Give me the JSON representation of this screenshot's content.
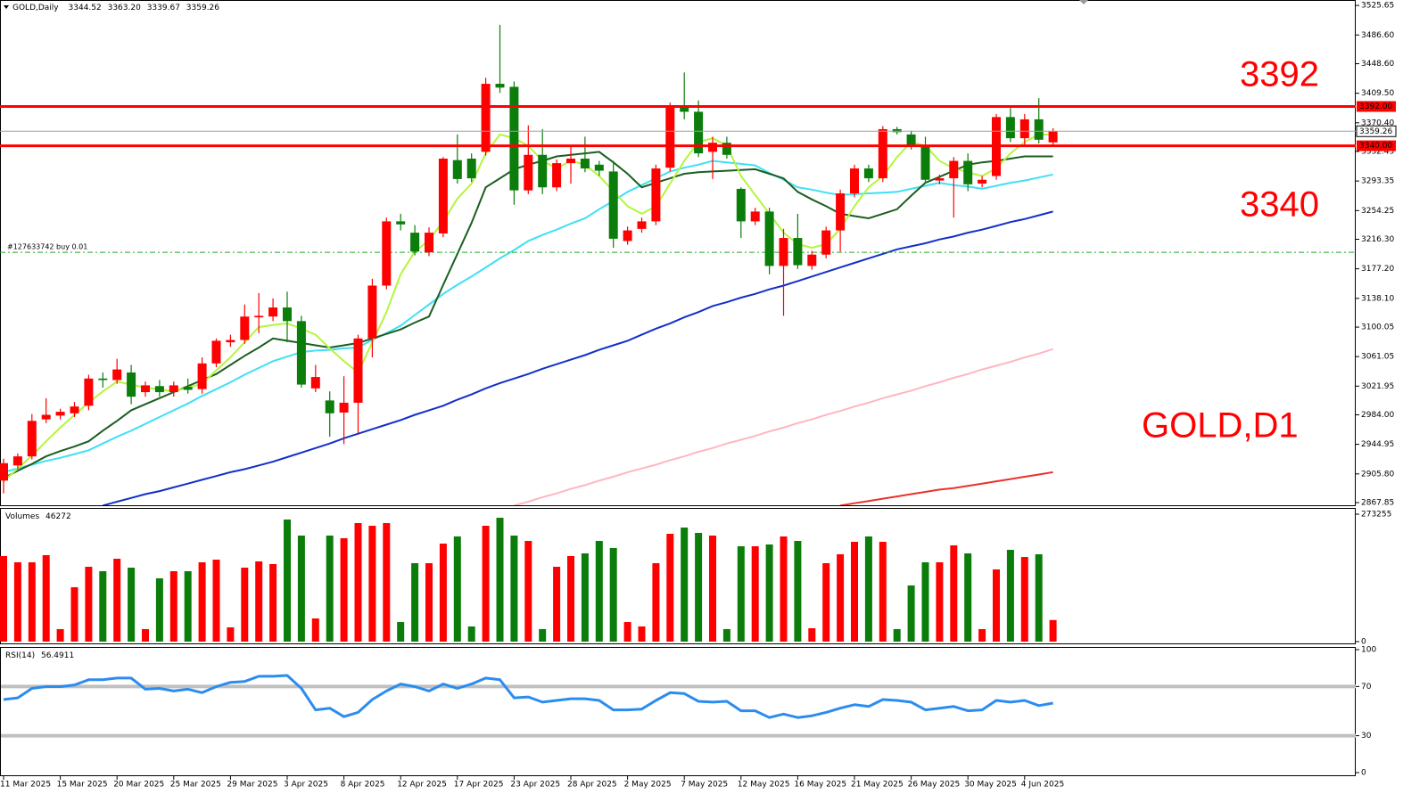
{
  "chart_data": [
    {
      "type": "candlestick",
      "header": {
        "title": "GOLD,Daily",
        "values": [
          3344.52,
          {
            "value": 3363.2,
            "label": "3363.20"
          },
          3339.67,
          3359.26
        ]
      },
      "categories": [
        "11 Mar 2025",
        null,
        null,
        null,
        "15 Mar 2025",
        null,
        null,
        null,
        "20 Mar 2025",
        null,
        null,
        null,
        "25 Mar 2025",
        null,
        null,
        null,
        "29 Mar 2025",
        null,
        null,
        null,
        "3 Apr 2025",
        null,
        null,
        null,
        "8 Apr 2025",
        null,
        null,
        null,
        "12 Apr 2025",
        null,
        null,
        null,
        "17 Apr 2025",
        null,
        null,
        null,
        "23 Apr 2025",
        null,
        null,
        null,
        "28 Apr 2025",
        null,
        null,
        null,
        "2 May 2025",
        null,
        null,
        null,
        "7 May 2025",
        null,
        null,
        null,
        "12 May 2025",
        null,
        null,
        null,
        "16 May 2025",
        null,
        null,
        null,
        "21 May 2025",
        null,
        null,
        null,
        "26 May 2025",
        null,
        null,
        null,
        "30 May 2025",
        null,
        null,
        null,
        "4 Jun 2025",
        null,
        null
      ],
      "open": [
        2897,
        2917,
        2929,
        2978,
        2983,
        2986,
        2996,
        3032,
        3030,
        3040,
        3014,
        3022,
        3014,
        3021,
        3018,
        3052,
        3080,
        3083,
        3113,
        3114,
        3126,
        3108,
        3019,
        3003,
        2987,
        3000,
        3085,
        3155,
        3240,
        3225,
        3199,
        3224,
        3321,
        3323,
        3332,
        3422,
        3418,
        3281,
        3328,
        3285,
        3317,
        3323,
        3315,
        3306,
        3214,
        3230,
        3240,
        3311,
        3393,
        3385,
        3332,
        3344,
        3283,
        3240,
        3253,
        3181,
        3218,
        3181,
        3196,
        3228,
        3277,
        3310,
        3297,
        3362,
        3355,
        3340,
        3294,
        3297,
        3320,
        3290,
        3300,
        3378,
        3350,
        3375,
        3344.52
      ],
      "high": [
        2926,
        2933,
        2985,
        3006,
        2992,
        3001,
        3037,
        3040,
        3058,
        3050,
        3028,
        3030,
        3028,
        3032,
        3060,
        3085,
        3090,
        3130,
        3145,
        3138,
        3147,
        3115,
        3050,
        3015,
        3035,
        3090,
        3164,
        3245,
        3250,
        3235,
        3232,
        3325,
        3355,
        3330,
        3430,
        3500,
        3425,
        3367,
        3362,
        3322,
        3340,
        3352,
        3320,
        3320,
        3233,
        3245,
        3315,
        3397,
        3437,
        3400,
        3352,
        3352,
        3285,
        3258,
        3258,
        3230,
        3250,
        3201,
        3233,
        3282,
        3315,
        3315,
        3366,
        3365,
        3360,
        3352,
        3302,
        3325,
        3330,
        3300,
        3382,
        3390,
        3382,
        3403,
        3363.2
      ],
      "low": [
        2880,
        2912,
        2925,
        2973,
        2978,
        2981,
        2990,
        3020,
        3025,
        2998,
        3008,
        3008,
        3008,
        3012,
        3012,
        3047,
        3074,
        3078,
        3092,
        3108,
        3080,
        3020,
        3014,
        2955,
        2945,
        2960,
        3060,
        3150,
        3228,
        3195,
        3194,
        3219,
        3290,
        3292,
        3327,
        3410,
        3262,
        3276,
        3276,
        3280,
        3290,
        3305,
        3300,
        3205,
        3209,
        3225,
        3235,
        3306,
        3375,
        3325,
        3296,
        3323,
        3218,
        3235,
        3170,
        3115,
        3177,
        3176,
        3191,
        3200,
        3272,
        3292,
        3292,
        3355,
        3335,
        3290,
        3289,
        3245,
        3280,
        3285,
        3295,
        3345,
        3340,
        3343,
        3339.67
      ],
      "close": [
        2920,
        2929,
        2976,
        2984,
        2988,
        2995,
        3032,
        3030,
        3044,
        3008,
        3023,
        3014,
        3023,
        3017,
        3052,
        3082,
        3083,
        3114,
        3115,
        3126,
        3108,
        3024,
        3034,
        2986,
        3000,
        3085,
        3155,
        3240,
        3236,
        3200,
        3225,
        3323,
        3296,
        3297,
        3422,
        3417,
        3281,
        3328,
        3285,
        3317,
        3323,
        3310,
        3307,
        3217,
        3228,
        3240,
        3310,
        3393,
        3385,
        3330,
        3344,
        3328,
        3240,
        3253,
        3181,
        3218,
        3182,
        3196,
        3228,
        3277,
        3310,
        3297,
        3362,
        3358,
        3340,
        3295,
        3297,
        3320,
        3289,
        3295,
        3378,
        3350,
        3375,
        3348,
        3359.26
      ],
      "up_color": "#ff0000",
      "down_color": "#0a7d0a",
      "series": [
        {
          "color": "#e8332a",
          "values": [
            null,
            null,
            null,
            null,
            null,
            null,
            null,
            null,
            null,
            null,
            null,
            null,
            null,
            null,
            null,
            null,
            null,
            null,
            null,
            null,
            null,
            null,
            null,
            null,
            null,
            null,
            null,
            null,
            null,
            null,
            null,
            null,
            null,
            null,
            null,
            null,
            null,
            null,
            null,
            null,
            null,
            null,
            null,
            null,
            null,
            null,
            null,
            null,
            null,
            null,
            null,
            null,
            null,
            null,
            null,
            null,
            null,
            null,
            null,
            2864,
            2867,
            2870,
            2873,
            2876,
            2879,
            2882,
            2885,
            2887,
            2890,
            2893,
            2896,
            2899,
            2902,
            2905,
            2908
          ]
        },
        {
          "color": "#ffb6c1",
          "values": [
            null,
            null,
            null,
            null,
            null,
            null,
            null,
            null,
            null,
            null,
            null,
            null,
            null,
            null,
            null,
            null,
            null,
            null,
            null,
            null,
            null,
            null,
            null,
            null,
            null,
            null,
            null,
            null,
            null,
            null,
            null,
            null,
            null,
            null,
            null,
            null,
            2864,
            2869,
            2875,
            2880,
            2886,
            2891,
            2897,
            2902,
            2908,
            2913,
            2918,
            2924,
            2929,
            2935,
            2940,
            2946,
            2951,
            2956,
            2962,
            2967,
            2973,
            2978,
            2984,
            2989,
            2995,
            3000,
            3006,
            3011,
            3016,
            3022,
            3027,
            3033,
            3038,
            3044,
            3049,
            3054,
            3060,
            3065,
            3071
          ]
        },
        {
          "color": "#1230c8",
          "values": [
            null,
            null,
            null,
            null,
            null,
            null,
            null,
            2864,
            2869,
            2874,
            2879,
            2883,
            2888,
            2893,
            2898,
            2903,
            2908,
            2912,
            2917,
            2922,
            2928,
            2934,
            2940,
            2946,
            2953,
            2959,
            2965,
            2971,
            2977,
            2984,
            2990,
            2996,
            3004,
            3011,
            3019,
            3026,
            3032,
            3038,
            3045,
            3051,
            3057,
            3063,
            3070,
            3076,
            3082,
            3090,
            3098,
            3105,
            3113,
            3120,
            3128,
            3133,
            3139,
            3144,
            3150,
            3155,
            3161,
            3167,
            3173,
            3179,
            3185,
            3191,
            3197,
            3203,
            3207,
            3211,
            3216,
            3220,
            3225,
            3229,
            3234,
            3239,
            3243,
            3248,
            3253
          ]
        },
        {
          "color": "#3ee0f5",
          "values": [
            2908,
            2913,
            2918,
            2923,
            2927,
            2932,
            2937,
            2946,
            2955,
            2963,
            2972,
            2981,
            2990,
            2999,
            3009,
            3018,
            3027,
            3037,
            3046,
            3055,
            3061,
            3067,
            3069,
            3070,
            3072,
            3073,
            3083,
            3092,
            3102,
            3116,
            3130,
            3144,
            3156,
            3167,
            3179,
            3191,
            3202,
            3214,
            3222,
            3229,
            3237,
            3244,
            3256,
            3267,
            3279,
            3288,
            3297,
            3306,
            3311,
            3315,
            3320,
            3318,
            3316,
            3314,
            3304,
            3295,
            3285,
            3282,
            3278,
            3275,
            3276,
            3277,
            3278,
            3279,
            3283,
            3287,
            3291,
            3288,
            3286,
            3283,
            3287,
            3291,
            3294,
            3298,
            3302
          ]
        },
        {
          "color": "#1b5e20",
          "values": [
            2900,
            2910,
            2919,
            2929,
            2936,
            2942,
            2949,
            2963,
            2976,
            2990,
            2998,
            3006,
            3014,
            3022,
            3030,
            3038,
            3050,
            3062,
            3073,
            3085,
            3082,
            3079,
            3076,
            3073,
            3076,
            3079,
            3085,
            3091,
            3097,
            3106,
            3114,
            3156,
            3197,
            3238,
            3285,
            3297,
            3309,
            3315,
            3320,
            3326,
            3328,
            3330,
            3332,
            3318,
            3303,
            3285,
            3291,
            3297,
            3303,
            3305,
            3306,
            3307,
            3308,
            3309,
            3303,
            3297,
            3279,
            3269,
            3260,
            3250,
            3247,
            3244,
            3250,
            3256,
            3274,
            3291,
            3299,
            3307,
            3315,
            3318,
            3320,
            3323,
            3326,
            3326,
            3326
          ]
        },
        {
          "color": "#b5f53c",
          "values": [
            2896,
            2913,
            2930,
            2949,
            2967,
            2984,
            3000,
            3015,
            3028,
            3024,
            3020,
            3018,
            3015,
            3020,
            3025,
            3043,
            3060,
            3080,
            3100,
            3103,
            3105,
            3098,
            3090,
            3072,
            3055,
            3040,
            3080,
            3120,
            3170,
            3200,
            3215,
            3240,
            3270,
            3290,
            3330,
            3355,
            3350,
            3340,
            3320,
            3310,
            3320,
            3315,
            3300,
            3280,
            3260,
            3250,
            3260,
            3290,
            3320,
            3345,
            3350,
            3340,
            3300,
            3275,
            3250,
            3225,
            3210,
            3205,
            3210,
            3230,
            3260,
            3285,
            3300,
            3325,
            3345,
            3340,
            3320,
            3310,
            3305,
            3300,
            3310,
            3330,
            3345,
            3355,
            3355
          ]
        }
      ],
      "levels": [
        {
          "value": 3392,
          "label": "3392.00"
        },
        {
          "value": 3340,
          "label": "3340.00"
        }
      ],
      "level_color": "#ff0000",
      "orders": [
        {
          "label": "#127633742 buy 0.01",
          "value": 3199
        }
      ],
      "annotation": "GOLD,D1",
      "ylim": [
        2864.3,
        3532.9
      ],
      "yticks": [
        3525.65,
        {
          "value": 3486.6,
          "label": "3486.60"
        },
        {
          "value": 3448.6,
          "label": "3448.60"
        },
        {
          "value": 3409.5,
          "label": "3409.50"
        },
        {
          "value": 3370.4,
          "label": "3370.40"
        },
        3332.45,
        3293.35,
        3254.25,
        {
          "value": 3216.3,
          "label": "3216.30"
        },
        {
          "value": 3177.2,
          "label": "3177.20"
        },
        {
          "value": 3138.1,
          "label": "3138.10"
        },
        3100.05,
        3061.05,
        3021.95,
        {
          "value": 2984,
          "label": "2984.00"
        },
        2944.95,
        {
          "value": 2905.8,
          "label": "2905.80"
        },
        2867.85
      ]
    },
    {
      "type": "bar",
      "title": "Volumes",
      "values": [
        183500,
        170100,
        170100,
        185400,
        26800,
        116600,
        160500,
        151000,
        177700,
        158600,
        26800,
        135700,
        151000,
        151000,
        170100,
        175800,
        30600,
        158600,
        172000,
        166300,
        261800,
        227400,
        49700,
        227400,
        221700,
        254200,
        248400,
        254200,
        42000,
        168200,
        168200,
        210200,
        225500,
        32500,
        248400,
        265600,
        227400,
        215900,
        26800,
        160500,
        183500,
        189200,
        215900,
        200700,
        42000,
        32500,
        168200,
        231200,
        244600,
        233100,
        227400,
        26800,
        204500,
        204500,
        208300,
        225500,
        215900,
        28700,
        168200,
        187300,
        214000,
        225500,
        214000,
        26800,
        120400,
        170100,
        170100,
        206400,
        189200,
        26800,
        154800,
        196800,
        181500,
        187300,
        46272
      ],
      "ylim": [
        0,
        273255
      ],
      "yticks": [
        0,
        273255
      ]
    },
    {
      "type": "line",
      "title": "RSI(14)",
      "color": "#2b8cf0",
      "values": [
        59.4,
        60.8,
        68.5,
        69.9,
        69.9,
        71.3,
        75.5,
        75.5,
        76.9,
        76.9,
        67.8,
        68.5,
        66.4,
        67.8,
        65.0,
        69.9,
        73.4,
        74.1,
        78.3,
        78.3,
        79.0,
        68.5,
        51.0,
        52.4,
        45.5,
        49.0,
        59.4,
        66.4,
        72.0,
        69.9,
        66.4,
        72.0,
        68.5,
        72.0,
        76.9,
        75.5,
        60.8,
        61.5,
        57.3,
        58.7,
        60.1,
        60.1,
        58.7,
        51.0,
        51.0,
        51.7,
        58.7,
        65.0,
        64.3,
        58.0,
        57.3,
        58.0,
        50.3,
        50.3,
        44.8,
        47.6,
        44.8,
        46.2,
        49.0,
        52.4,
        55.2,
        53.8,
        59.4,
        58.7,
        57.3,
        51.0,
        52.4,
        53.8,
        50.3,
        51.0,
        58.7,
        57.3,
        58.7,
        54.5,
        56.4911
      ],
      "levels": [
        70,
        30
      ],
      "level_color": "#c0c0c0",
      "ylim": [
        0,
        100
      ],
      "yticks": [
        100,
        70,
        30,
        0
      ]
    }
  ]
}
